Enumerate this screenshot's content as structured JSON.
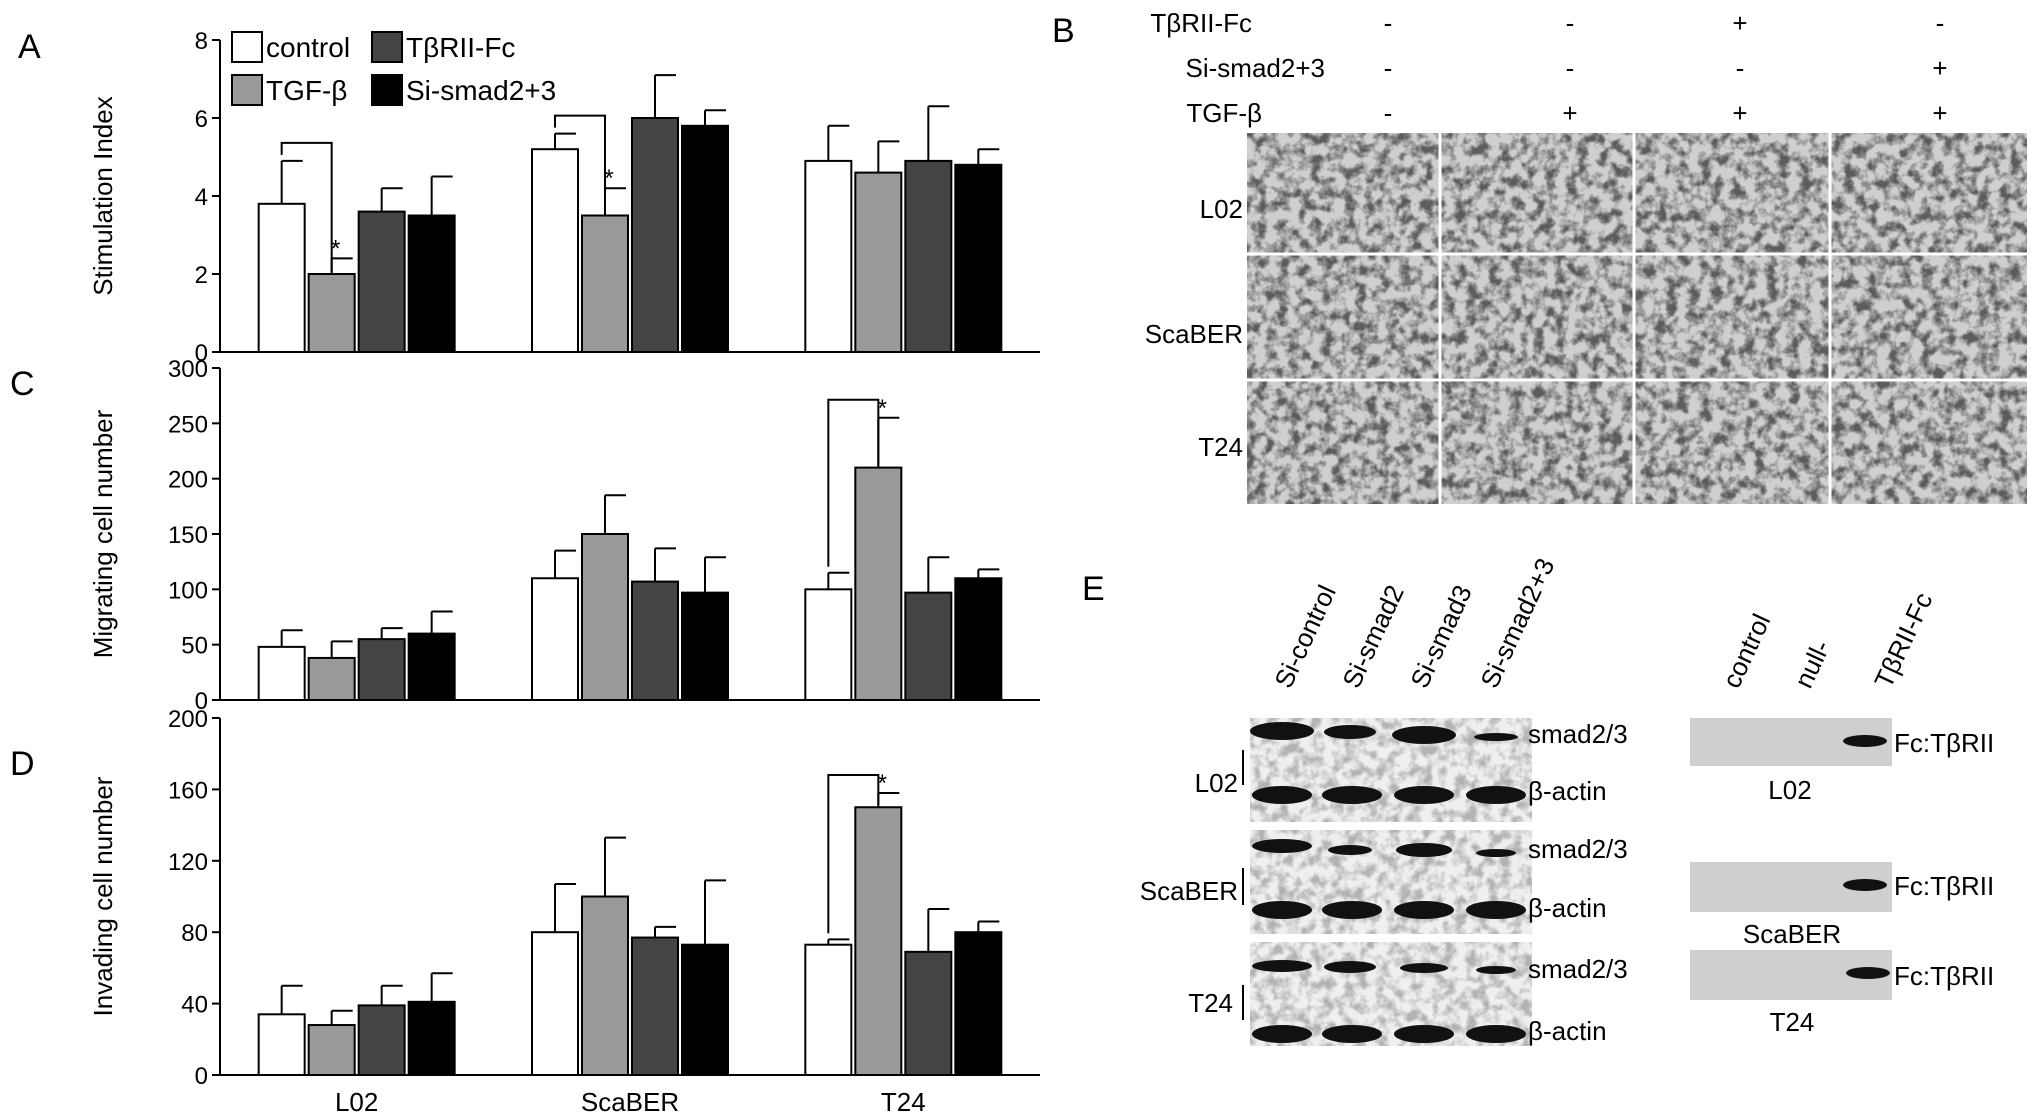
{
  "panels": {
    "A": "A",
    "B": "B",
    "C": "C",
    "D": "D",
    "E": "E"
  },
  "legend": {
    "items": [
      {
        "label": "control",
        "color": "#ffffff"
      },
      {
        "label": "TGF-β",
        "color": "#999999"
      },
      {
        "label": "TβRII-Fc",
        "color": "#444444"
      },
      {
        "label": "Si-smad2+3",
        "color": "#000000"
      }
    ]
  },
  "chart_data": [
    {
      "panel": "A",
      "type": "bar",
      "ylabel": "Stimulation Index",
      "ylim": [
        0,
        8
      ],
      "yticks": [
        "0",
        "2",
        "4",
        "6",
        "8"
      ],
      "categories": [
        "L02",
        "ScaBER",
        "T24"
      ],
      "series": [
        {
          "name": "control",
          "color": "#ffffff",
          "values": [
            3.8,
            5.2,
            4.9
          ],
          "errors": [
            1.1,
            0.4,
            0.9
          ]
        },
        {
          "name": "TGF-β",
          "color": "#999999",
          "values": [
            2.0,
            3.5,
            4.6
          ],
          "errors": [
            0.4,
            0.7,
            0.8
          ]
        },
        {
          "name": "TβRII-Fc",
          "color": "#444444",
          "values": [
            3.6,
            6.0,
            4.9
          ],
          "errors": [
            0.6,
            1.1,
            1.4
          ]
        },
        {
          "name": "Si-smad2+3",
          "color": "#000000",
          "values": [
            3.5,
            5.8,
            4.8
          ],
          "errors": [
            1.0,
            0.4,
            0.4
          ]
        }
      ],
      "significance": [
        {
          "category": 0,
          "from": 0,
          "to": 1,
          "mark": "*"
        },
        {
          "category": 1,
          "from": 0,
          "to": 1,
          "mark": "*"
        }
      ]
    },
    {
      "panel": "C",
      "type": "bar",
      "ylabel": "Migrating cell number",
      "ylim": [
        0,
        300
      ],
      "yticks": [
        "0",
        "50",
        "100",
        "150",
        "200",
        "250",
        "300"
      ],
      "categories": [
        "L02",
        "ScaBER",
        "T24"
      ],
      "series": [
        {
          "name": "control",
          "color": "#ffffff",
          "values": [
            48,
            110,
            100
          ],
          "errors": [
            15,
            25,
            15
          ]
        },
        {
          "name": "TGF-β",
          "color": "#999999",
          "values": [
            38,
            150,
            210
          ],
          "errors": [
            15,
            35,
            45
          ]
        },
        {
          "name": "TβRII-Fc",
          "color": "#444444",
          "values": [
            55,
            107,
            97
          ],
          "errors": [
            10,
            30,
            32
          ]
        },
        {
          "name": "Si-smad2+3",
          "color": "#000000",
          "values": [
            60,
            97,
            110
          ],
          "errors": [
            20,
            32,
            8
          ]
        }
      ],
      "significance": [
        {
          "category": 2,
          "from": 0,
          "to": 1,
          "mark": "*"
        }
      ]
    },
    {
      "panel": "D",
      "type": "bar",
      "ylabel": "Invading cell number",
      "ylim": [
        0,
        200
      ],
      "yticks": [
        "0",
        "40",
        "80",
        "120",
        "160",
        "200"
      ],
      "categories": [
        "L02",
        "ScaBER",
        "T24"
      ],
      "series": [
        {
          "name": "control",
          "color": "#ffffff",
          "values": [
            34,
            80,
            73
          ],
          "errors": [
            16,
            27,
            3
          ]
        },
        {
          "name": "TGF-β",
          "color": "#999999",
          "values": [
            28,
            100,
            150
          ],
          "errors": [
            8,
            33,
            8
          ]
        },
        {
          "name": "TβRII-Fc",
          "color": "#444444",
          "values": [
            39,
            77,
            69
          ],
          "errors": [
            11,
            6,
            24
          ]
        },
        {
          "name": "Si-smad2+3",
          "color": "#000000",
          "values": [
            41,
            73,
            80
          ],
          "errors": [
            16,
            36,
            6
          ]
        }
      ],
      "significance": [
        {
          "category": 2,
          "from": 0,
          "to": 1,
          "mark": "*"
        }
      ]
    }
  ],
  "micrographs": {
    "conditions": [
      "TβRII-Fc",
      "Si-smad2+3",
      "TGF-β"
    ],
    "columns": [
      [
        "-",
        "-",
        "-"
      ],
      [
        "-",
        "-",
        "+"
      ],
      [
        "+",
        "-",
        "+"
      ],
      [
        "-",
        "+",
        "+"
      ]
    ],
    "rows": [
      "L02",
      "ScaBER",
      "T24"
    ]
  },
  "westerns": {
    "lanes": [
      "Si-control",
      "Si-smad2",
      "Si-smad3",
      "Si-smad2+3"
    ],
    "blots": [
      {
        "cell": "L02",
        "bands": [
          "smad2/3",
          "β-actin"
        ]
      },
      {
        "cell": "ScaBER",
        "bands": [
          "smad2/3",
          "β-actin"
        ]
      },
      {
        "cell": "T24",
        "bands": [
          "smad2/3",
          "β-actin"
        ]
      }
    ],
    "fc_lanes": [
      "control",
      "null-",
      "TβRII-Fc"
    ],
    "fc_blots": [
      {
        "cell": "L02",
        "band": "Fc:TβRII"
      },
      {
        "cell": "ScaBER",
        "band": "Fc:TβRII"
      },
      {
        "cell": "T24",
        "band": "Fc:TβRII"
      }
    ]
  }
}
